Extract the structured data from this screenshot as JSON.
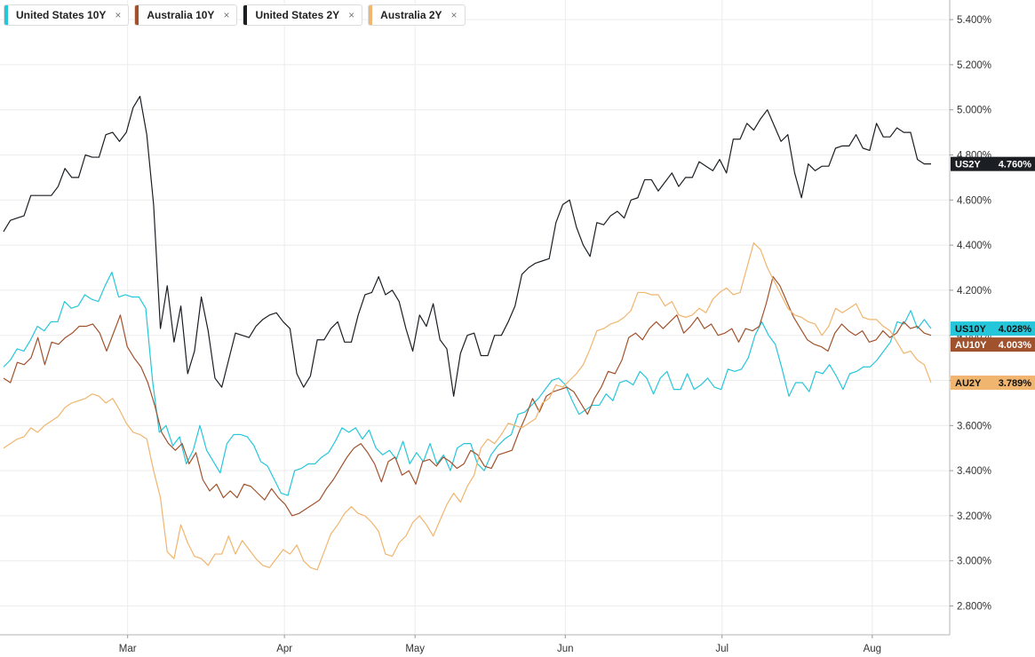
{
  "legend": [
    {
      "label": "United States 10Y",
      "color": "#26c6da",
      "close": "×"
    },
    {
      "label": "Australia 10Y",
      "color": "#a0522d",
      "close": "×"
    },
    {
      "label": "United States 2Y",
      "color": "#1b1f24",
      "close": "×"
    },
    {
      "label": "Australia 2Y",
      "color": "#f0b56e",
      "close": "×"
    }
  ],
  "chart_data": {
    "type": "line",
    "x_axis": {
      "tick_labels": [
        "Mar",
        "Apr",
        "May",
        "Jun",
        "Jul",
        "Aug"
      ],
      "tick_positions": [
        19,
        43,
        63,
        86,
        110,
        133
      ],
      "range": [
        0,
        142
      ]
    },
    "y_axis": {
      "tick_labels": [
        "2.800%",
        "3.000%",
        "3.200%",
        "3.400%",
        "3.600%",
        "3.800%",
        "4.000%",
        "4.200%",
        "4.400%",
        "4.600%",
        "4.800%",
        "5.000%",
        "5.200%",
        "5.400%"
      ],
      "range": [
        2.672,
        5.487
      ],
      "position": "right"
    },
    "series": [
      {
        "name": "United States 2Y",
        "short": "US2Y",
        "last_label": "4.760%",
        "color": "#1b1f24",
        "text_color": "#ffffff",
        "values": [
          4.46,
          4.51,
          4.52,
          4.53,
          4.62,
          4.62,
          4.62,
          4.62,
          4.66,
          4.74,
          4.7,
          4.7,
          4.8,
          4.79,
          4.79,
          4.89,
          4.9,
          4.86,
          4.9,
          5.01,
          5.06,
          4.89,
          4.58,
          4.03,
          4.22,
          3.97,
          4.13,
          3.83,
          3.93,
          4.17,
          4.02,
          3.81,
          3.77,
          3.89,
          4.01,
          4.0,
          3.99,
          4.04,
          4.07,
          4.09,
          4.1,
          4.06,
          4.03,
          3.83,
          3.77,
          3.82,
          3.98,
          3.98,
          4.03,
          4.06,
          3.97,
          3.97,
          4.09,
          4.18,
          4.19,
          4.26,
          4.18,
          4.2,
          4.15,
          4.03,
          3.93,
          4.09,
          4.04,
          4.14,
          3.98,
          3.94,
          3.73,
          3.92,
          4.0,
          4.01,
          3.91,
          3.91,
          4.0,
          4.0,
          4.06,
          4.13,
          4.27,
          4.3,
          4.32,
          4.33,
          4.34,
          4.5,
          4.58,
          4.6,
          4.48,
          4.4,
          4.35,
          4.5,
          4.49,
          4.53,
          4.55,
          4.52,
          4.6,
          4.61,
          4.69,
          4.69,
          4.64,
          4.68,
          4.72,
          4.66,
          4.7,
          4.7,
          4.77,
          4.75,
          4.73,
          4.78,
          4.72,
          4.87,
          4.87,
          4.94,
          4.91,
          4.96,
          5.0,
          4.93,
          4.86,
          4.89,
          4.72,
          4.61,
          4.76,
          4.73,
          4.75,
          4.75,
          4.83,
          4.84,
          4.84,
          4.89,
          4.83,
          4.82,
          4.94,
          4.88,
          4.88,
          4.92,
          4.9,
          4.9,
          4.78,
          4.76,
          4.76
        ],
        "values_note": ""
      },
      {
        "name": "United States 10Y",
        "short": "US10Y",
        "last_label": "4.028%",
        "color": "#26c6da",
        "text_color": "#111111",
        "values": [
          3.86,
          3.89,
          3.94,
          3.93,
          3.98,
          4.04,
          4.02,
          4.06,
          4.06,
          4.15,
          4.12,
          4.13,
          4.18,
          4.16,
          4.15,
          4.22,
          4.28,
          4.17,
          4.18,
          4.17,
          4.17,
          4.12,
          3.8,
          3.57,
          3.6,
          3.51,
          3.55,
          3.43,
          3.49,
          3.6,
          3.49,
          3.44,
          3.39,
          3.52,
          3.56,
          3.56,
          3.55,
          3.51,
          3.44,
          3.42,
          3.36,
          3.3,
          3.29,
          3.4,
          3.41,
          3.43,
          3.43,
          3.46,
          3.48,
          3.53,
          3.59,
          3.57,
          3.59,
          3.54,
          3.58,
          3.5,
          3.47,
          3.49,
          3.45,
          3.53,
          3.43,
          3.48,
          3.44,
          3.52,
          3.43,
          3.47,
          3.4,
          3.5,
          3.52,
          3.52,
          3.43,
          3.4,
          3.47,
          3.51,
          3.54,
          3.56,
          3.65,
          3.66,
          3.69,
          3.72,
          3.76,
          3.8,
          3.81,
          3.78,
          3.71,
          3.65,
          3.67,
          3.69,
          3.69,
          3.74,
          3.71,
          3.79,
          3.8,
          3.78,
          3.84,
          3.81,
          3.74,
          3.81,
          3.84,
          3.76,
          3.76,
          3.83,
          3.76,
          3.78,
          3.81,
          3.77,
          3.76,
          3.85,
          3.84,
          3.85,
          3.9,
          4.0,
          4.06,
          4.0,
          3.96,
          3.85,
          3.73,
          3.79,
          3.79,
          3.75,
          3.84,
          3.83,
          3.87,
          3.82,
          3.76,
          3.83,
          3.84,
          3.86,
          3.86,
          3.89,
          3.93,
          3.97,
          4.06,
          4.05,
          4.11,
          4.03,
          4.07,
          4.03
        ],
        "values_note": ""
      },
      {
        "name": "Australia 10Y",
        "short": "AU10Y",
        "last_label": "4.003%",
        "color": "#a0522d",
        "text_color": "#ffffff",
        "values": [
          3.81,
          3.79,
          3.88,
          3.87,
          3.9,
          3.99,
          3.87,
          3.97,
          3.96,
          3.99,
          4.01,
          4.04,
          4.04,
          4.05,
          4.01,
          3.93,
          4.01,
          4.09,
          3.95,
          3.9,
          3.86,
          3.79,
          3.69,
          3.57,
          3.52,
          3.49,
          3.52,
          3.43,
          3.48,
          3.36,
          3.31,
          3.34,
          3.28,
          3.31,
          3.28,
          3.34,
          3.33,
          3.3,
          3.27,
          3.32,
          3.28,
          3.25,
          3.2,
          3.21,
          3.23,
          3.25,
          3.27,
          3.32,
          3.36,
          3.41,
          3.46,
          3.5,
          3.52,
          3.48,
          3.43,
          3.35,
          3.44,
          3.46,
          3.38,
          3.4,
          3.34,
          3.44,
          3.45,
          3.42,
          3.46,
          3.44,
          3.41,
          3.43,
          3.49,
          3.47,
          3.42,
          3.41,
          3.47,
          3.48,
          3.49,
          3.57,
          3.64,
          3.72,
          3.66,
          3.73,
          3.75,
          3.76,
          3.77,
          3.75,
          3.7,
          3.65,
          3.72,
          3.77,
          3.84,
          3.83,
          3.89,
          3.99,
          4.01,
          3.98,
          4.03,
          4.06,
          4.03,
          4.06,
          4.09,
          4.01,
          4.04,
          4.08,
          4.03,
          4.05,
          4.0,
          4.01,
          4.03,
          3.97,
          4.03,
          4.02,
          4.04,
          4.14,
          4.26,
          4.22,
          4.15,
          4.08,
          4.03,
          3.98,
          3.96,
          3.95,
          3.93,
          4.01,
          4.05,
          4.02,
          4.0,
          4.02,
          3.97,
          3.98,
          4.02,
          3.99,
          4.01,
          4.06,
          4.03,
          4.04,
          4.01,
          4.0
        ],
        "values_note": ""
      },
      {
        "name": "Australia 2Y",
        "short": "AU2Y",
        "last_label": "3.789%",
        "color": "#f0b56e",
        "text_color": "#111111",
        "values": [
          3.5,
          3.52,
          3.54,
          3.55,
          3.59,
          3.57,
          3.6,
          3.62,
          3.64,
          3.68,
          3.7,
          3.71,
          3.72,
          3.74,
          3.73,
          3.7,
          3.72,
          3.67,
          3.61,
          3.57,
          3.56,
          3.54,
          3.4,
          3.28,
          3.04,
          3.01,
          3.16,
          3.08,
          3.02,
          3.01,
          2.98,
          3.03,
          3.03,
          3.11,
          3.03,
          3.09,
          3.05,
          3.01,
          2.98,
          2.97,
          3.01,
          3.05,
          3.03,
          3.07,
          3.0,
          2.97,
          2.96,
          3.04,
          3.12,
          3.16,
          3.21,
          3.24,
          3.21,
          3.2,
          3.17,
          3.13,
          3.03,
          3.02,
          3.08,
          3.11,
          3.17,
          3.2,
          3.16,
          3.11,
          3.18,
          3.25,
          3.3,
          3.26,
          3.33,
          3.38,
          3.5,
          3.54,
          3.52,
          3.56,
          3.61,
          3.6,
          3.59,
          3.61,
          3.63,
          3.7,
          3.72,
          3.78,
          3.77,
          3.8,
          3.83,
          3.87,
          3.94,
          4.02,
          4.03,
          4.05,
          4.06,
          4.08,
          4.11,
          4.19,
          4.19,
          4.18,
          4.18,
          4.13,
          4.15,
          4.09,
          4.08,
          4.09,
          4.12,
          4.1,
          4.16,
          4.19,
          4.21,
          4.18,
          4.19,
          4.3,
          4.41,
          4.38,
          4.3,
          4.24,
          4.18,
          4.12,
          4.09,
          4.08,
          4.06,
          4.05,
          4.0,
          4.04,
          4.12,
          4.1,
          4.12,
          4.14,
          4.08,
          4.07,
          4.07,
          4.04,
          4.02,
          3.97,
          3.92,
          3.93,
          3.89,
          3.87,
          3.79
        ],
        "values_note": ""
      }
    ],
    "grid": true,
    "legend_placement": "top-left"
  }
}
